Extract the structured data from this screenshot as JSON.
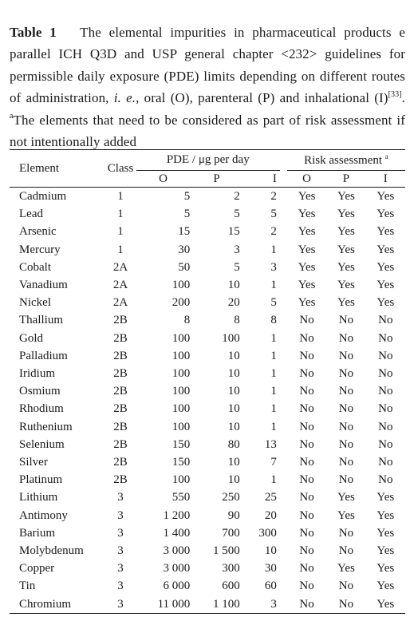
{
  "caption": {
    "label": "Table 1",
    "text_1": "The elemental impurities in pharmaceutical products e parallel ICH Q3D and USP general chapter <232> guidelines for permissible daily exposure (PDE) limits depending on different routes of administration, ",
    "ie": "i. e.",
    "text_2": ", oral (O), parenteral (P) and inhalational (I)",
    "ref": "[33]",
    "text_3": ". ",
    "footnote_marker": "a",
    "footnote": "The elements that need to be considered as part of risk assessment if not intentionally added"
  },
  "table": {
    "headers": {
      "element": "Element",
      "class": "Class",
      "pde": "PDE / μg per day",
      "risk": "Risk assessment",
      "risk_marker": "a",
      "routes": [
        "O",
        "P",
        "I"
      ]
    },
    "rows": [
      {
        "element": "Cadmium",
        "class": "1",
        "pde_o": "5",
        "pde_p": "2",
        "pde_i": "2",
        "risk_o": "Yes",
        "risk_p": "Yes",
        "risk_i": "Yes"
      },
      {
        "element": "Lead",
        "class": "1",
        "pde_o": "5",
        "pde_p": "5",
        "pde_i": "5",
        "risk_o": "Yes",
        "risk_p": "Yes",
        "risk_i": "Yes"
      },
      {
        "element": "Arsenic",
        "class": "1",
        "pde_o": "15",
        "pde_p": "15",
        "pde_i": "2",
        "risk_o": "Yes",
        "risk_p": "Yes",
        "risk_i": "Yes"
      },
      {
        "element": "Mercury",
        "class": "1",
        "pde_o": "30",
        "pde_p": "3",
        "pde_i": "1",
        "risk_o": "Yes",
        "risk_p": "Yes",
        "risk_i": "Yes"
      },
      {
        "element": "Cobalt",
        "class": "2A",
        "pde_o": "50",
        "pde_p": "5",
        "pde_i": "3",
        "risk_o": "Yes",
        "risk_p": "Yes",
        "risk_i": "Yes"
      },
      {
        "element": "Vanadium",
        "class": "2A",
        "pde_o": "100",
        "pde_p": "10",
        "pde_i": "1",
        "risk_o": "Yes",
        "risk_p": "Yes",
        "risk_i": "Yes"
      },
      {
        "element": "Nickel",
        "class": "2A",
        "pde_o": "200",
        "pde_p": "20",
        "pde_i": "5",
        "risk_o": "Yes",
        "risk_p": "Yes",
        "risk_i": "Yes"
      },
      {
        "element": "Thallium",
        "class": "2B",
        "pde_o": "8",
        "pde_p": "8",
        "pde_i": "8",
        "risk_o": "No",
        "risk_p": "No",
        "risk_i": "No"
      },
      {
        "element": "Gold",
        "class": "2B",
        "pde_o": "100",
        "pde_p": "100",
        "pde_i": "1",
        "risk_o": "No",
        "risk_p": "No",
        "risk_i": "No"
      },
      {
        "element": "Palladium",
        "class": "2B",
        "pde_o": "100",
        "pde_p": "10",
        "pde_i": "1",
        "risk_o": "No",
        "risk_p": "No",
        "risk_i": "No"
      },
      {
        "element": "Iridium",
        "class": "2B",
        "pde_o": "100",
        "pde_p": "10",
        "pde_i": "1",
        "risk_o": "No",
        "risk_p": "No",
        "risk_i": "No"
      },
      {
        "element": "Osmium",
        "class": "2B",
        "pde_o": "100",
        "pde_p": "10",
        "pde_i": "1",
        "risk_o": "No",
        "risk_p": "No",
        "risk_i": "No"
      },
      {
        "element": "Rhodium",
        "class": "2B",
        "pde_o": "100",
        "pde_p": "10",
        "pde_i": "1",
        "risk_o": "No",
        "risk_p": "No",
        "risk_i": "No"
      },
      {
        "element": "Ruthenium",
        "class": "2B",
        "pde_o": "100",
        "pde_p": "10",
        "pde_i": "1",
        "risk_o": "No",
        "risk_p": "No",
        "risk_i": "No"
      },
      {
        "element": "Selenium",
        "class": "2B",
        "pde_o": "150",
        "pde_p": "80",
        "pde_i": "13",
        "risk_o": "No",
        "risk_p": "No",
        "risk_i": "No"
      },
      {
        "element": "Silver",
        "class": "2B",
        "pde_o": "150",
        "pde_p": "10",
        "pde_i": "7",
        "risk_o": "No",
        "risk_p": "No",
        "risk_i": "No"
      },
      {
        "element": "Platinum",
        "class": "2B",
        "pde_o": "100",
        "pde_p": "10",
        "pde_i": "1",
        "risk_o": "No",
        "risk_p": "No",
        "risk_i": "No"
      },
      {
        "element": "Lithium",
        "class": "3",
        "pde_o": "550",
        "pde_p": "250",
        "pde_i": "25",
        "risk_o": "No",
        "risk_p": "Yes",
        "risk_i": "Yes"
      },
      {
        "element": "Antimony",
        "class": "3",
        "pde_o": "1 200",
        "pde_p": "90",
        "pde_i": "20",
        "risk_o": "No",
        "risk_p": "Yes",
        "risk_i": "Yes"
      },
      {
        "element": "Barium",
        "class": "3",
        "pde_o": "1 400",
        "pde_p": "700",
        "pde_i": "300",
        "risk_o": "No",
        "risk_p": "No",
        "risk_i": "Yes"
      },
      {
        "element": "Molybdenum",
        "class": "3",
        "pde_o": "3 000",
        "pde_p": "1 500",
        "pde_i": "10",
        "risk_o": "No",
        "risk_p": "No",
        "risk_i": "Yes"
      },
      {
        "element": "Copper",
        "class": "3",
        "pde_o": "3 000",
        "pde_p": "300",
        "pde_i": "30",
        "risk_o": "No",
        "risk_p": "Yes",
        "risk_i": "Yes"
      },
      {
        "element": "Tin",
        "class": "3",
        "pde_o": "6 000",
        "pde_p": "600",
        "pde_i": "60",
        "risk_o": "No",
        "risk_p": "No",
        "risk_i": "Yes"
      },
      {
        "element": "Chromium",
        "class": "3",
        "pde_o": "11 000",
        "pde_p": "1 100",
        "pde_i": "3",
        "risk_o": "No",
        "risk_p": "No",
        "risk_i": "Yes"
      }
    ]
  }
}
